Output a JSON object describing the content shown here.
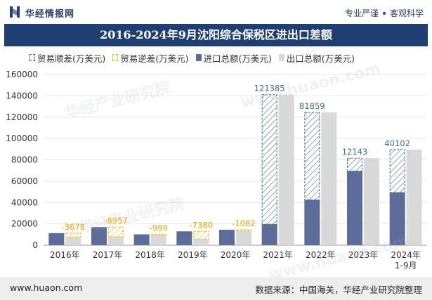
{
  "header": {
    "brand": "华经情报网",
    "slogan_left": "专业严谨",
    "slogan_right": "客观科学"
  },
  "title": "2016-2024年9月沈阳综合保税区进出口差额",
  "legend": [
    {
      "key": "surplus",
      "label": "贸易顺差(万美元)"
    },
    {
      "key": "deficit",
      "label": "贸易逆差(万美元)"
    },
    {
      "key": "import",
      "label": "进口总额(万美元)"
    },
    {
      "key": "export",
      "label": "出口总额(万美元)"
    }
  ],
  "colors": {
    "import": "#5d6d99",
    "export": "#d9d9d9",
    "surplus_line": "#3d6f8a",
    "deficit_line": "#f2b600",
    "surplus_label": "#3d6f8a",
    "deficit_label": "#f2a000",
    "grid": "#e6e6e6",
    "title_bg": "#1f3f73"
  },
  "chart_data": {
    "type": "bar",
    "title": "2016-2024年9月沈阳综合保税区进出口差额",
    "categories": [
      "2016年",
      "2017年",
      "2018年",
      "2019年",
      "2020年",
      "2021年",
      "2022年",
      "2023年",
      "2024年\n1-9月"
    ],
    "series": [
      {
        "name": "进口总额(万美元)",
        "values": [
          11300,
          17000,
          10200,
          13000,
          14500,
          19700,
          42500,
          69500,
          49500
        ]
      },
      {
        "name": "出口总额(万美元)",
        "values": [
          7600,
          8000,
          9200,
          5600,
          13400,
          141100,
          124400,
          81600,
          89600
        ]
      }
    ],
    "balance": [
      -3678,
      -8957,
      -999,
      -7380,
      -1082,
      121385,
      81859,
      12143,
      40102
    ],
    "ylim": [
      0,
      160000
    ],
    "yticks": [
      0,
      20000,
      40000,
      60000,
      80000,
      100000,
      120000,
      140000,
      160000
    ],
    "xlabel": "",
    "ylabel": ""
  },
  "footer": {
    "url": "www.huaon.com",
    "source": "数据来源：中国海关，华经产业研究院整理"
  },
  "watermarks": [
    "华经产业研究院",
    "www.huaon.com"
  ]
}
